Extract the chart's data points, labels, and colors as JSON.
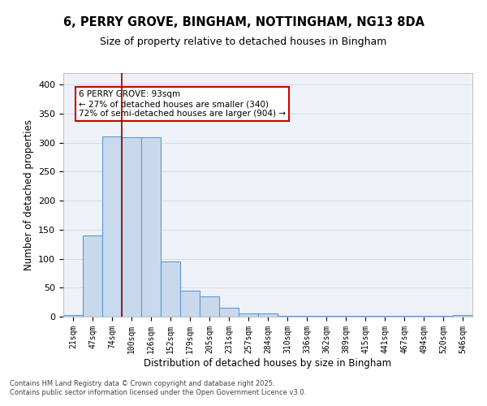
{
  "title_line1": "6, PERRY GROVE, BINGHAM, NOTTINGHAM, NG13 8DA",
  "title_line2": "Size of property relative to detached houses in Bingham",
  "xlabel": "Distribution of detached houses by size in Bingham",
  "ylabel": "Number of detached properties",
  "bar_labels": [
    "21sqm",
    "47sqm",
    "74sqm",
    "100sqm",
    "126sqm",
    "152sqm",
    "179sqm",
    "205sqm",
    "231sqm",
    "257sqm",
    "284sqm",
    "310sqm",
    "336sqm",
    "362sqm",
    "389sqm",
    "415sqm",
    "441sqm",
    "467sqm",
    "494sqm",
    "520sqm",
    "546sqm"
  ],
  "bar_values": [
    3,
    140,
    311,
    310,
    309,
    95,
    45,
    35,
    15,
    5,
    5,
    1,
    1,
    1,
    1,
    1,
    1,
    1,
    1,
    1,
    3
  ],
  "bar_color": "#c9d9ec",
  "bar_edge_color": "#5b9bd5",
  "grid_color": "#d3dce8",
  "bg_color": "#eef2f8",
  "red_line_x": 2.5,
  "red_line_color": "#8b0000",
  "annotation_text": "6 PERRY GROVE: 93sqm\n← 27% of detached houses are smaller (340)\n72% of semi-detached houses are larger (904) →",
  "annotation_box_color": "#ffffff",
  "annotation_border_color": "#cc0000",
  "footer_line1": "Contains HM Land Registry data © Crown copyright and database right 2025.",
  "footer_line2": "Contains public sector information licensed under the Open Government Licence v3.0.",
  "ylim": [
    0,
    420
  ],
  "yticks": [
    0,
    50,
    100,
    150,
    200,
    250,
    300,
    350,
    400
  ]
}
